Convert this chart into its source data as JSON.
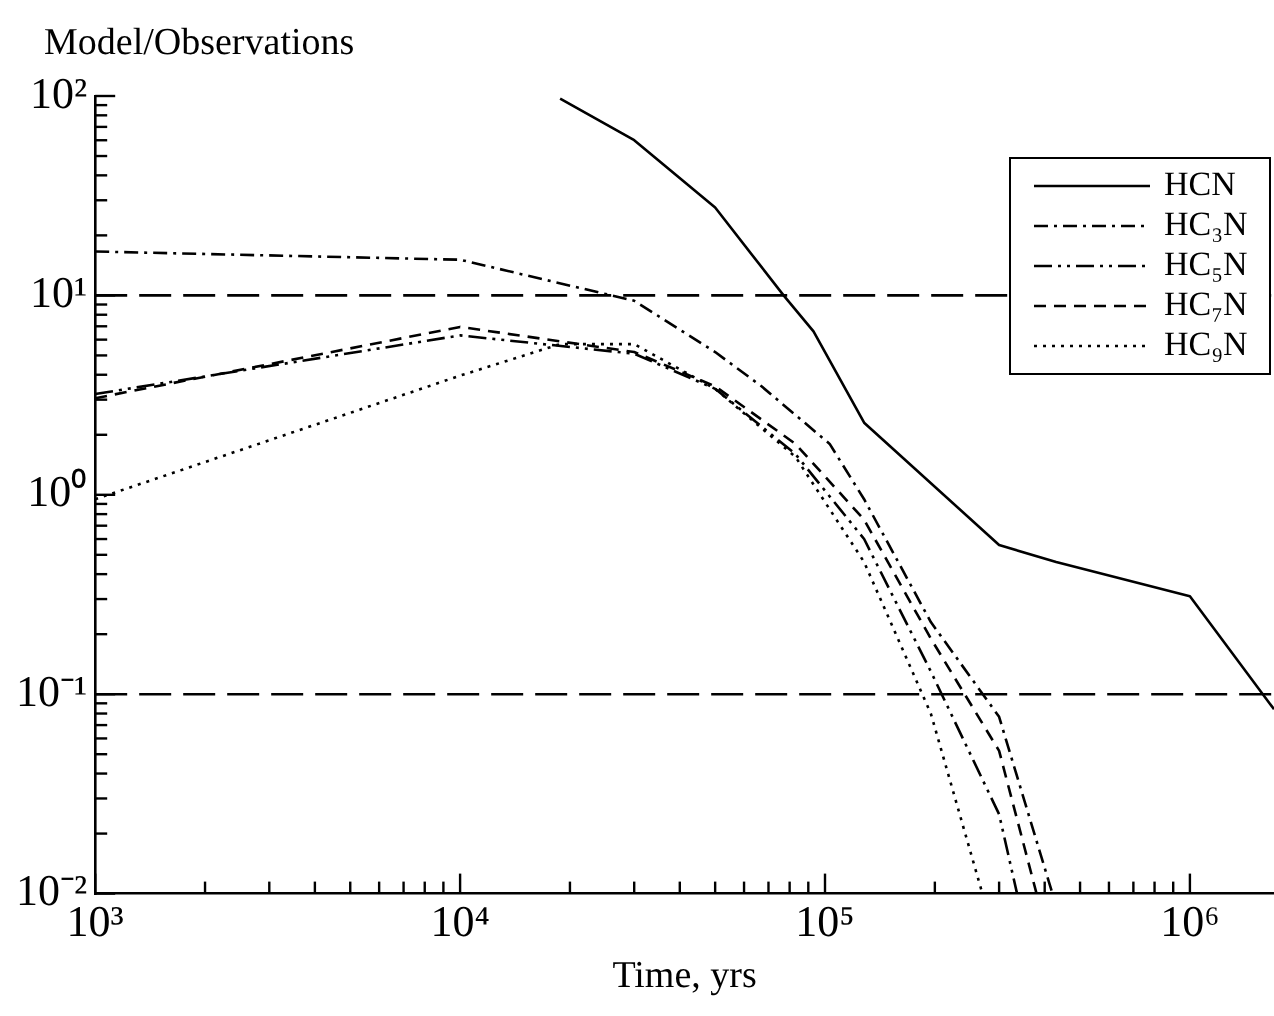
{
  "chart_data": {
    "type": "line",
    "xlabel": "Time, yrs",
    "ylabel": "Model/Observations",
    "log": "xy",
    "grid": false,
    "legend": "top right",
    "marker": "none",
    "xlim": [
      1000,
      1700000
    ],
    "xticks": [
      {
        "value": 1000,
        "label": "10³"
      },
      {
        "value": 2000,
        "label": null
      },
      {
        "value": 3000,
        "label": null
      },
      {
        "value": 4000,
        "label": null
      },
      {
        "value": 5000,
        "label": null
      },
      {
        "value": 6000,
        "label": null
      },
      {
        "value": 7000,
        "label": null
      },
      {
        "value": 8000,
        "label": null
      },
      {
        "value": 9000,
        "label": null
      },
      {
        "value": 10000,
        "label": "10⁴"
      },
      {
        "value": 20000,
        "label": null
      },
      {
        "value": 30000,
        "label": null
      },
      {
        "value": 40000,
        "label": null
      },
      {
        "value": 50000,
        "label": null
      },
      {
        "value": 60000,
        "label": null
      },
      {
        "value": 70000,
        "label": null
      },
      {
        "value": 80000,
        "label": null
      },
      {
        "value": 90000,
        "label": null
      },
      {
        "value": 100000,
        "label": "10⁵"
      },
      {
        "value": 200000,
        "label": null
      },
      {
        "value": 300000,
        "label": null
      },
      {
        "value": 400000,
        "label": null
      },
      {
        "value": 500000,
        "label": null
      },
      {
        "value": 600000,
        "label": null
      },
      {
        "value": 700000,
        "label": null
      },
      {
        "value": 800000,
        "label": null
      },
      {
        "value": 900000,
        "label": null
      },
      {
        "value": 1000000,
        "label": "10⁶"
      }
    ],
    "ylim": [
      0.01,
      100
    ],
    "yticks": [
      {
        "value": 0.01,
        "label": "10⁻²"
      },
      {
        "value": 0.02,
        "label": null
      },
      {
        "value": 0.03,
        "label": null
      },
      {
        "value": 0.04,
        "label": null
      },
      {
        "value": 0.05,
        "label": null
      },
      {
        "value": 0.06,
        "label": null
      },
      {
        "value": 0.07,
        "label": null
      },
      {
        "value": 0.08,
        "label": null
      },
      {
        "value": 0.09,
        "label": null
      },
      {
        "value": 0.1,
        "label": "10⁻¹"
      },
      {
        "value": 0.2,
        "label": null
      },
      {
        "value": 0.3,
        "label": null
      },
      {
        "value": 0.4,
        "label": null
      },
      {
        "value": 0.5,
        "label": null
      },
      {
        "value": 0.6,
        "label": null
      },
      {
        "value": 0.7,
        "label": null
      },
      {
        "value": 0.8,
        "label": null
      },
      {
        "value": 0.9,
        "label": null
      },
      {
        "value": 1,
        "label": "10⁰"
      },
      {
        "value": 2,
        "label": null
      },
      {
        "value": 3,
        "label": null
      },
      {
        "value": 4,
        "label": null
      },
      {
        "value": 5,
        "label": null
      },
      {
        "value": 6,
        "label": null
      },
      {
        "value": 7,
        "label": null
      },
      {
        "value": 8,
        "label": null
      },
      {
        "value": 9,
        "label": null
      },
      {
        "value": 10,
        "label": "10¹"
      },
      {
        "value": 20,
        "label": null
      },
      {
        "value": 30,
        "label": null
      },
      {
        "value": 40,
        "label": null
      },
      {
        "value": 50,
        "label": null
      },
      {
        "value": 60,
        "label": null
      },
      {
        "value": 70,
        "label": null
      },
      {
        "value": 80,
        "label": null
      },
      {
        "value": 90,
        "label": null
      },
      {
        "value": 100,
        "label": "10²"
      }
    ],
    "ref_lines": [
      {
        "axis": "y",
        "value": 10,
        "line_style": "dashed",
        "color": "#000000"
      },
      {
        "axis": "y",
        "value": 0.1,
        "line_style": "dashed",
        "color": "#000000"
      }
    ],
    "series": [
      {
        "name": "HCN",
        "color": "#000000",
        "line_style": "solid",
        "x": [
          18800,
          30000,
          50000,
          77000,
          93000,
          128000,
          300000,
          430000,
          1000000,
          1700000
        ],
        "values": [
          97,
          60,
          27.6,
          10,
          6.6,
          2.3,
          0.56,
          0.46,
          0.31,
          0.084
        ]
      },
      {
        "name": "HC₃N",
        "color": "#000000",
        "line_style": "dashdot",
        "x": [
          1000,
          10000,
          30000,
          50000,
          67000,
          103000,
          128000,
          195000,
          300000,
          420000
        ],
        "values": [
          16.6,
          15.1,
          9.4,
          5.2,
          3.5,
          1.8,
          0.95,
          0.23,
          0.077,
          0.01
        ]
      },
      {
        "name": "HC₅N",
        "color": "#000000",
        "line_style": "dashdotdot",
        "x": [
          1000,
          10000,
          30000,
          50000,
          83000,
          128000,
          195000,
          300000,
          336000
        ],
        "values": [
          3.2,
          6.3,
          5.1,
          3.4,
          1.6,
          0.6,
          0.13,
          0.025,
          0.01
        ]
      },
      {
        "name": "HC₇N",
        "color": "#000000",
        "line_style": "dashed",
        "x": [
          1000,
          10000,
          30000,
          50000,
          83000,
          128000,
          195000,
          300000,
          380000
        ],
        "values": [
          3.05,
          6.95,
          5.2,
          3.5,
          1.8,
          0.75,
          0.19,
          0.052,
          0.01
        ]
      },
      {
        "name": "HC₉N",
        "color": "#000000",
        "line_style": "dotted",
        "x": [
          1000,
          10000,
          18800,
          30000,
          50000,
          83000,
          128000,
          195000,
          270000
        ],
        "values": [
          0.95,
          3.96,
          5.7,
          5.7,
          3.4,
          1.55,
          0.46,
          0.08,
          0.01
        ]
      }
    ]
  }
}
